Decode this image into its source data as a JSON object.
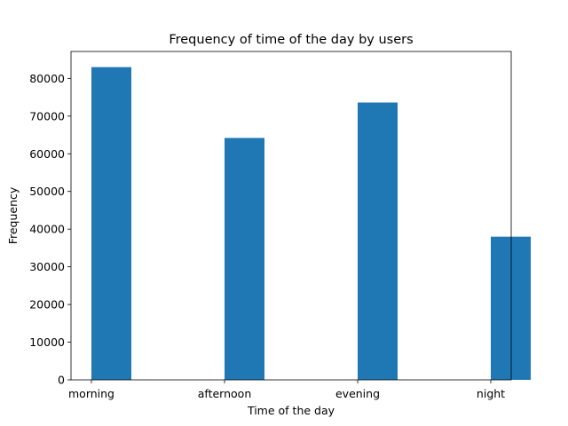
{
  "chart_data": {
    "type": "bar",
    "title": "Frequency of time of the day by users",
    "xlabel": "Time of the day",
    "ylabel": "Frequency",
    "categories": [
      "morning",
      "afternoon",
      "evening",
      "night"
    ],
    "values": [
      83000,
      64200,
      73600,
      38000
    ],
    "ylim": [
      0,
      87150
    ],
    "yticks": [
      "0",
      "10000",
      "20000",
      "30000",
      "40000",
      "50000",
      "60000",
      "70000",
      "80000"
    ],
    "ytick_values": [
      0,
      10000,
      20000,
      30000,
      40000,
      50000,
      60000,
      70000,
      80000
    ],
    "bar_color": "#1f77b4",
    "grid": false,
    "legend": "none"
  }
}
